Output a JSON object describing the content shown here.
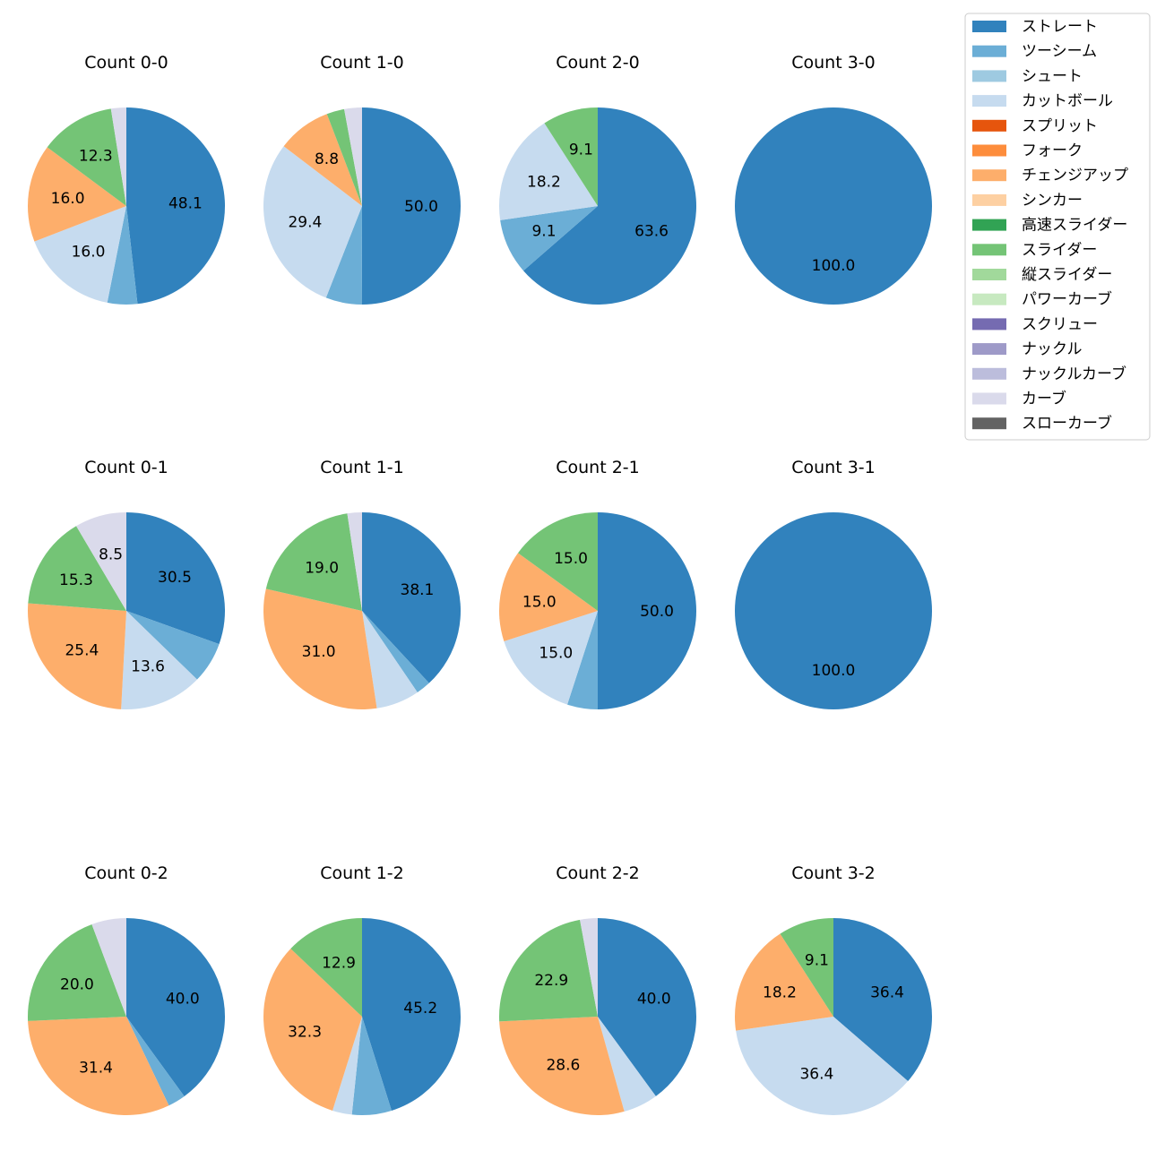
{
  "chart_data": {
    "type": "pie",
    "categories": [
      "ストレート",
      "ツーシーム",
      "シュート",
      "カットボール",
      "スプリット",
      "フォーク",
      "チェンジアップ",
      "シンカー",
      "高速スライダー",
      "スライダー",
      "縦スライダー",
      "パワーカーブ",
      "スクリュー",
      "ナックル",
      "ナックルカーブ",
      "カーブ",
      "スローカーブ"
    ],
    "colors": [
      "#3182bd",
      "#6baed6",
      "#9ecae1",
      "#c6dbef",
      "#e6550d",
      "#fd8d3c",
      "#fdae6b",
      "#fdd0a2",
      "#31a354",
      "#74c476",
      "#a1d99b",
      "#c7e9c0",
      "#756bb1",
      "#9e9ac8",
      "#bcbddc",
      "#dadaeb",
      "#636363"
    ],
    "legend_position": "top-right",
    "label_threshold_percent": 8,
    "pies": [
      {
        "title": "Count 0-0",
        "slices": [
          {
            "name": "ストレート",
            "value": 48.1
          },
          {
            "name": "ツーシーム",
            "value": 4.9
          },
          {
            "name": "カットボール",
            "value": 16.0
          },
          {
            "name": "チェンジアップ",
            "value": 16.0
          },
          {
            "name": "スライダー",
            "value": 12.3
          },
          {
            "name": "カーブ",
            "value": 2.5
          }
        ]
      },
      {
        "title": "Count 1-0",
        "slices": [
          {
            "name": "ストレート",
            "value": 50.0
          },
          {
            "name": "ツーシーム",
            "value": 5.9
          },
          {
            "name": "カットボール",
            "value": 29.4
          },
          {
            "name": "チェンジアップ",
            "value": 8.8
          },
          {
            "name": "スライダー",
            "value": 2.9
          },
          {
            "name": "カーブ",
            "value": 2.9
          }
        ]
      },
      {
        "title": "Count 2-0",
        "slices": [
          {
            "name": "ストレート",
            "value": 63.6
          },
          {
            "name": "ツーシーム",
            "value": 9.1
          },
          {
            "name": "カットボール",
            "value": 18.2
          },
          {
            "name": "スライダー",
            "value": 9.1
          }
        ]
      },
      {
        "title": "Count 3-0",
        "slices": [
          {
            "name": "ストレート",
            "value": 100.0
          }
        ]
      },
      {
        "title": "Count 0-1",
        "slices": [
          {
            "name": "ストレート",
            "value": 30.5
          },
          {
            "name": "ツーシーム",
            "value": 6.8
          },
          {
            "name": "カットボール",
            "value": 13.6
          },
          {
            "name": "チェンジアップ",
            "value": 25.4
          },
          {
            "name": "スライダー",
            "value": 15.3
          },
          {
            "name": "カーブ",
            "value": 8.5
          }
        ]
      },
      {
        "title": "Count 1-1",
        "slices": [
          {
            "name": "ストレート",
            "value": 38.1
          },
          {
            "name": "ツーシーム",
            "value": 2.4
          },
          {
            "name": "カットボール",
            "value": 7.1
          },
          {
            "name": "チェンジアップ",
            "value": 31.0
          },
          {
            "name": "スライダー",
            "value": 19.0
          },
          {
            "name": "カーブ",
            "value": 2.4
          }
        ]
      },
      {
        "title": "Count 2-1",
        "slices": [
          {
            "name": "ストレート",
            "value": 50.0
          },
          {
            "name": "ツーシーム",
            "value": 5.0
          },
          {
            "name": "カットボール",
            "value": 15.0
          },
          {
            "name": "チェンジアップ",
            "value": 15.0
          },
          {
            "name": "スライダー",
            "value": 15.0
          }
        ]
      },
      {
        "title": "Count 3-1",
        "slices": [
          {
            "name": "ストレート",
            "value": 100.0
          }
        ]
      },
      {
        "title": "Count 0-2",
        "slices": [
          {
            "name": "ストレート",
            "value": 40.0
          },
          {
            "name": "ツーシーム",
            "value": 2.9
          },
          {
            "name": "チェンジアップ",
            "value": 31.4
          },
          {
            "name": "スライダー",
            "value": 20.0
          },
          {
            "name": "カーブ",
            "value": 5.7
          }
        ]
      },
      {
        "title": "Count 1-2",
        "slices": [
          {
            "name": "ストレート",
            "value": 45.2
          },
          {
            "name": "ツーシーム",
            "value": 6.5
          },
          {
            "name": "カットボール",
            "value": 3.2
          },
          {
            "name": "チェンジアップ",
            "value": 32.3
          },
          {
            "name": "スライダー",
            "value": 12.9
          }
        ]
      },
      {
        "title": "Count 2-2",
        "slices": [
          {
            "name": "ストレート",
            "value": 40.0
          },
          {
            "name": "カットボール",
            "value": 5.7
          },
          {
            "name": "チェンジアップ",
            "value": 28.6
          },
          {
            "name": "スライダー",
            "value": 22.9
          },
          {
            "name": "カーブ",
            "value": 2.9
          }
        ]
      },
      {
        "title": "Count 3-2",
        "slices": [
          {
            "name": "ストレート",
            "value": 36.4
          },
          {
            "name": "カットボール",
            "value": 36.4
          },
          {
            "name": "チェンジアップ",
            "value": 18.2
          },
          {
            "name": "スライダー",
            "value": 9.1
          }
        ]
      }
    ]
  }
}
